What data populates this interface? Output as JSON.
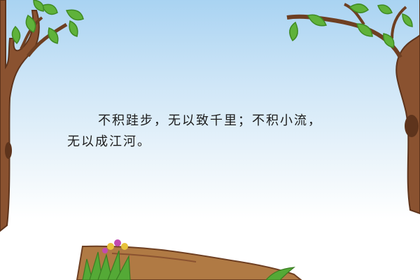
{
  "quote": {
    "line1": "不积跬步，无以致千里；不积小流，",
    "line2": "无以成江河。"
  },
  "colors": {
    "sky_top": "#a9d3f2",
    "sky_bottom": "#ffffff",
    "trunk": "#8a5230",
    "trunk_dark": "#5e341c",
    "leaf": "#5fb23a",
    "leaf_dark": "#3f8a24",
    "grass": "#54a936",
    "log": "#b07a44",
    "text": "#1c1c1c"
  },
  "icons": [
    "tree-left-icon",
    "tree-right-icon",
    "grass-icon",
    "flower-icon",
    "log-icon"
  ]
}
